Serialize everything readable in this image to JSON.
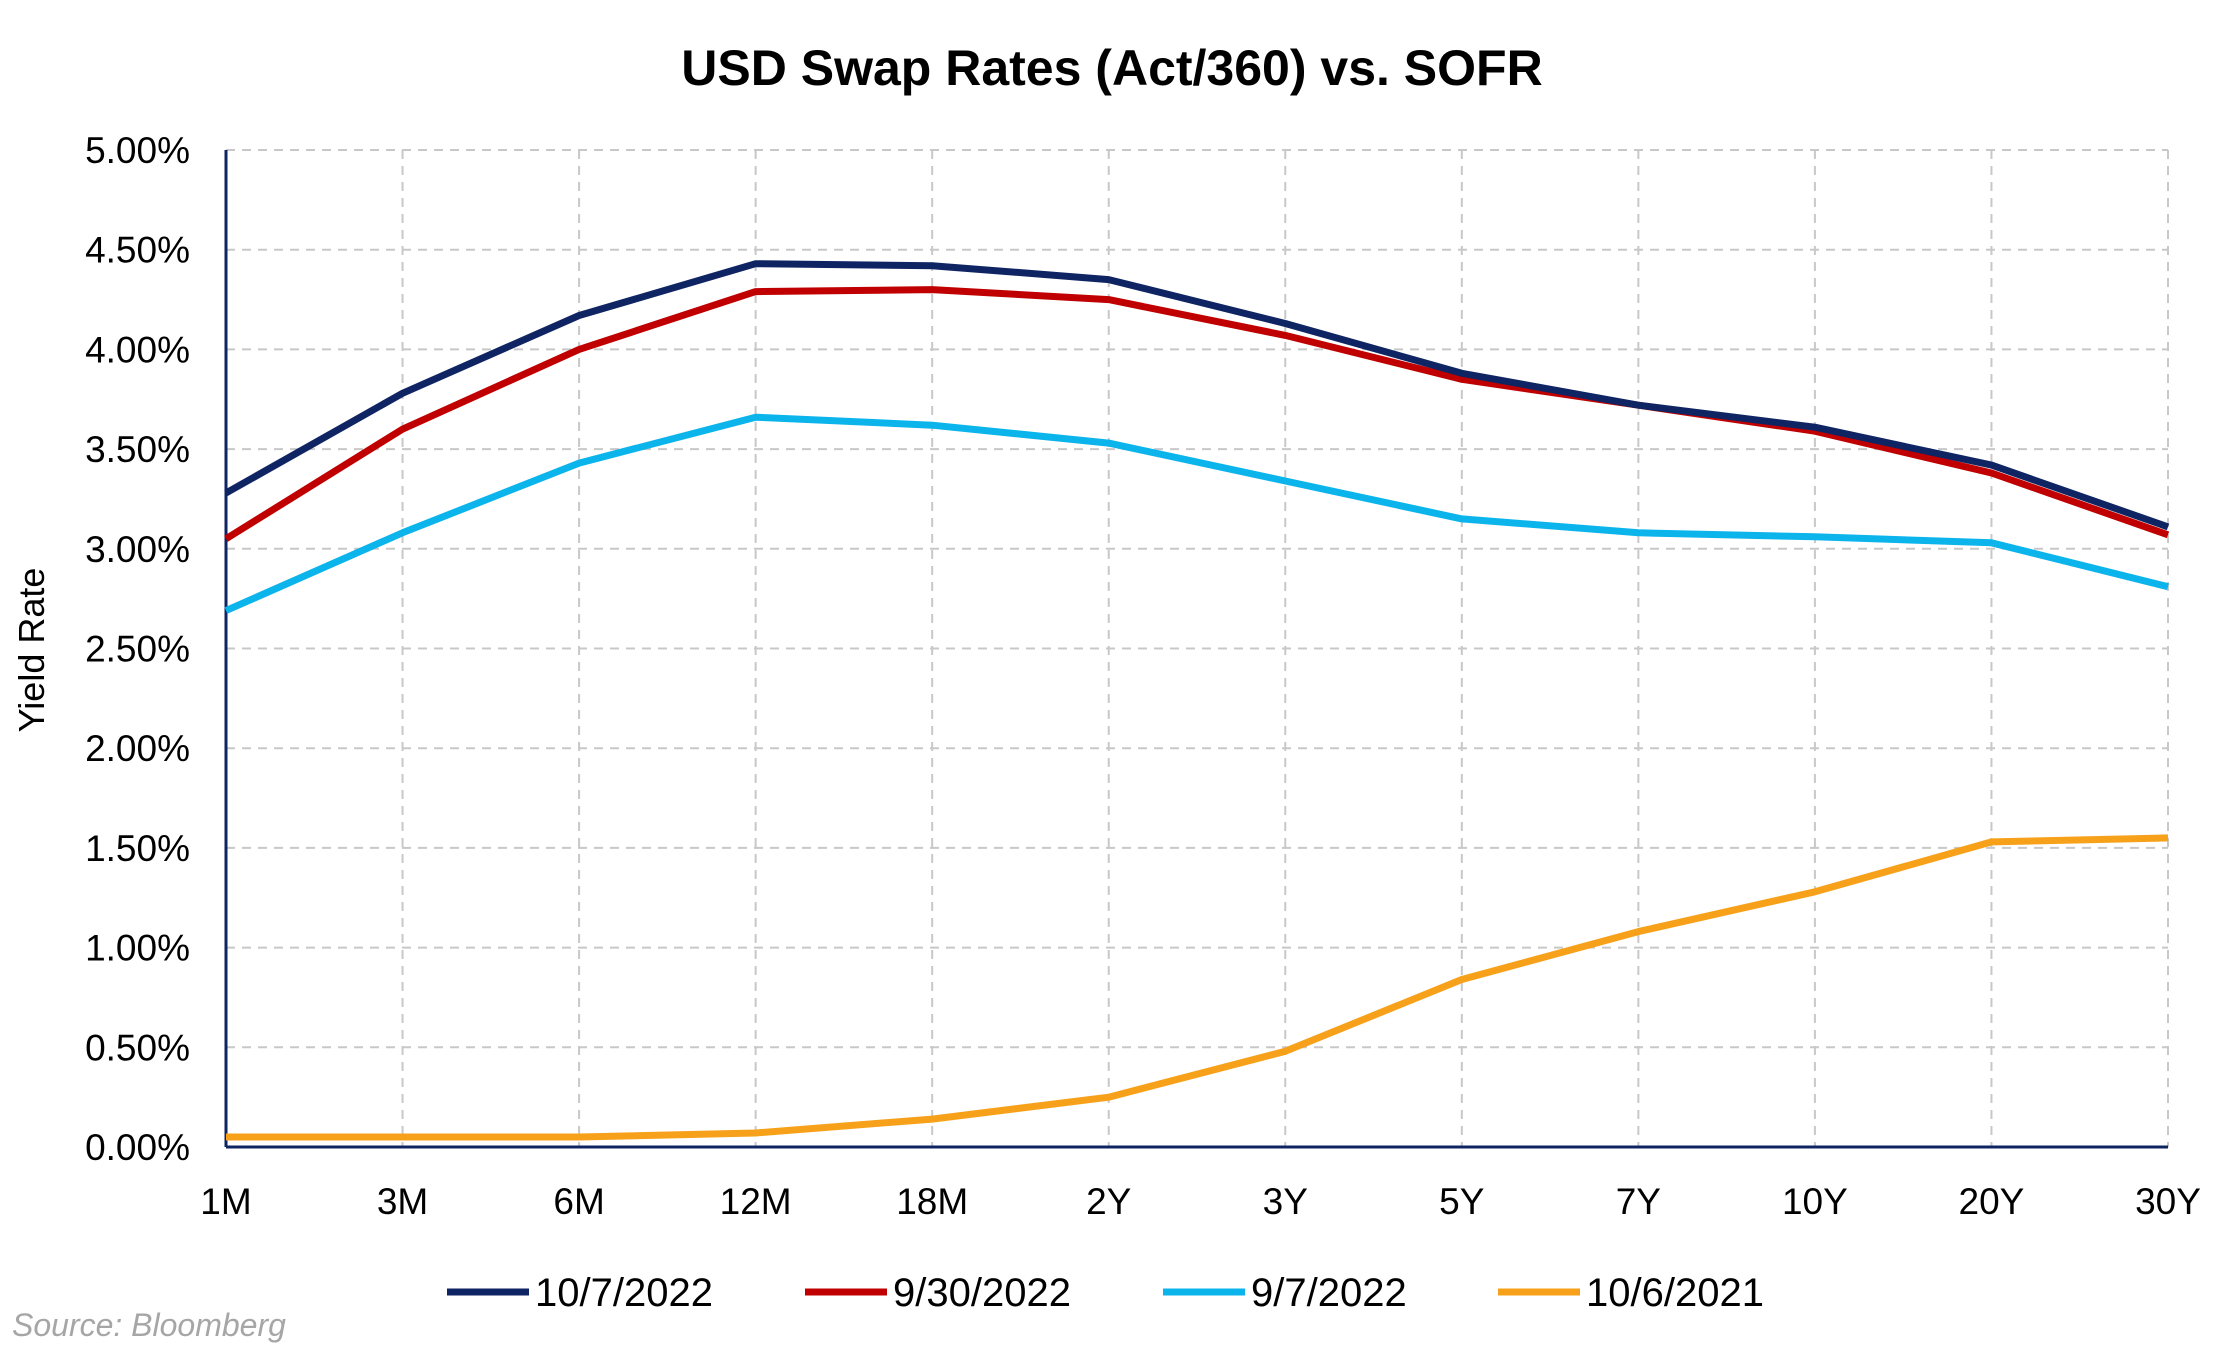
{
  "chart_data": {
    "type": "line",
    "title": "USD Swap Rates (Act/360) vs. SOFR",
    "ylabel": "Yield Rate",
    "xlabel": "",
    "categories": [
      "1M",
      "3M",
      "6M",
      "12M",
      "18M",
      "2Y",
      "3Y",
      "5Y",
      "7Y",
      "10Y",
      "20Y",
      "30Y"
    ],
    "ylim": [
      0,
      5
    ],
    "yticks": [
      "0.00%",
      "0.50%",
      "1.00%",
      "1.50%",
      "2.00%",
      "2.50%",
      "3.00%",
      "3.50%",
      "4.00%",
      "4.50%",
      "5.00%"
    ],
    "grid": true,
    "legend_position": "bottom",
    "series": [
      {
        "name": "10/7/2022",
        "color": "#0f2462",
        "values": [
          3.28,
          3.78,
          4.17,
          4.43,
          4.42,
          4.35,
          4.13,
          3.88,
          3.72,
          3.61,
          3.42,
          3.11
        ]
      },
      {
        "name": "9/30/2022",
        "color": "#c00000",
        "values": [
          3.05,
          3.6,
          4.0,
          4.29,
          4.3,
          4.25,
          4.07,
          3.85,
          3.72,
          3.59,
          3.38,
          3.07
        ]
      },
      {
        "name": "9/7/2022",
        "color": "#0cb4ec",
        "values": [
          2.69,
          3.08,
          3.43,
          3.66,
          3.62,
          3.53,
          3.34,
          3.15,
          3.08,
          3.06,
          3.03,
          2.81
        ]
      },
      {
        "name": "10/6/2021",
        "color": "#f7a11a",
        "values": [
          0.05,
          0.05,
          0.05,
          0.07,
          0.14,
          0.25,
          0.48,
          0.84,
          1.08,
          1.28,
          1.53,
          1.55
        ]
      }
    ]
  },
  "source_note": "Source: Bloomberg"
}
